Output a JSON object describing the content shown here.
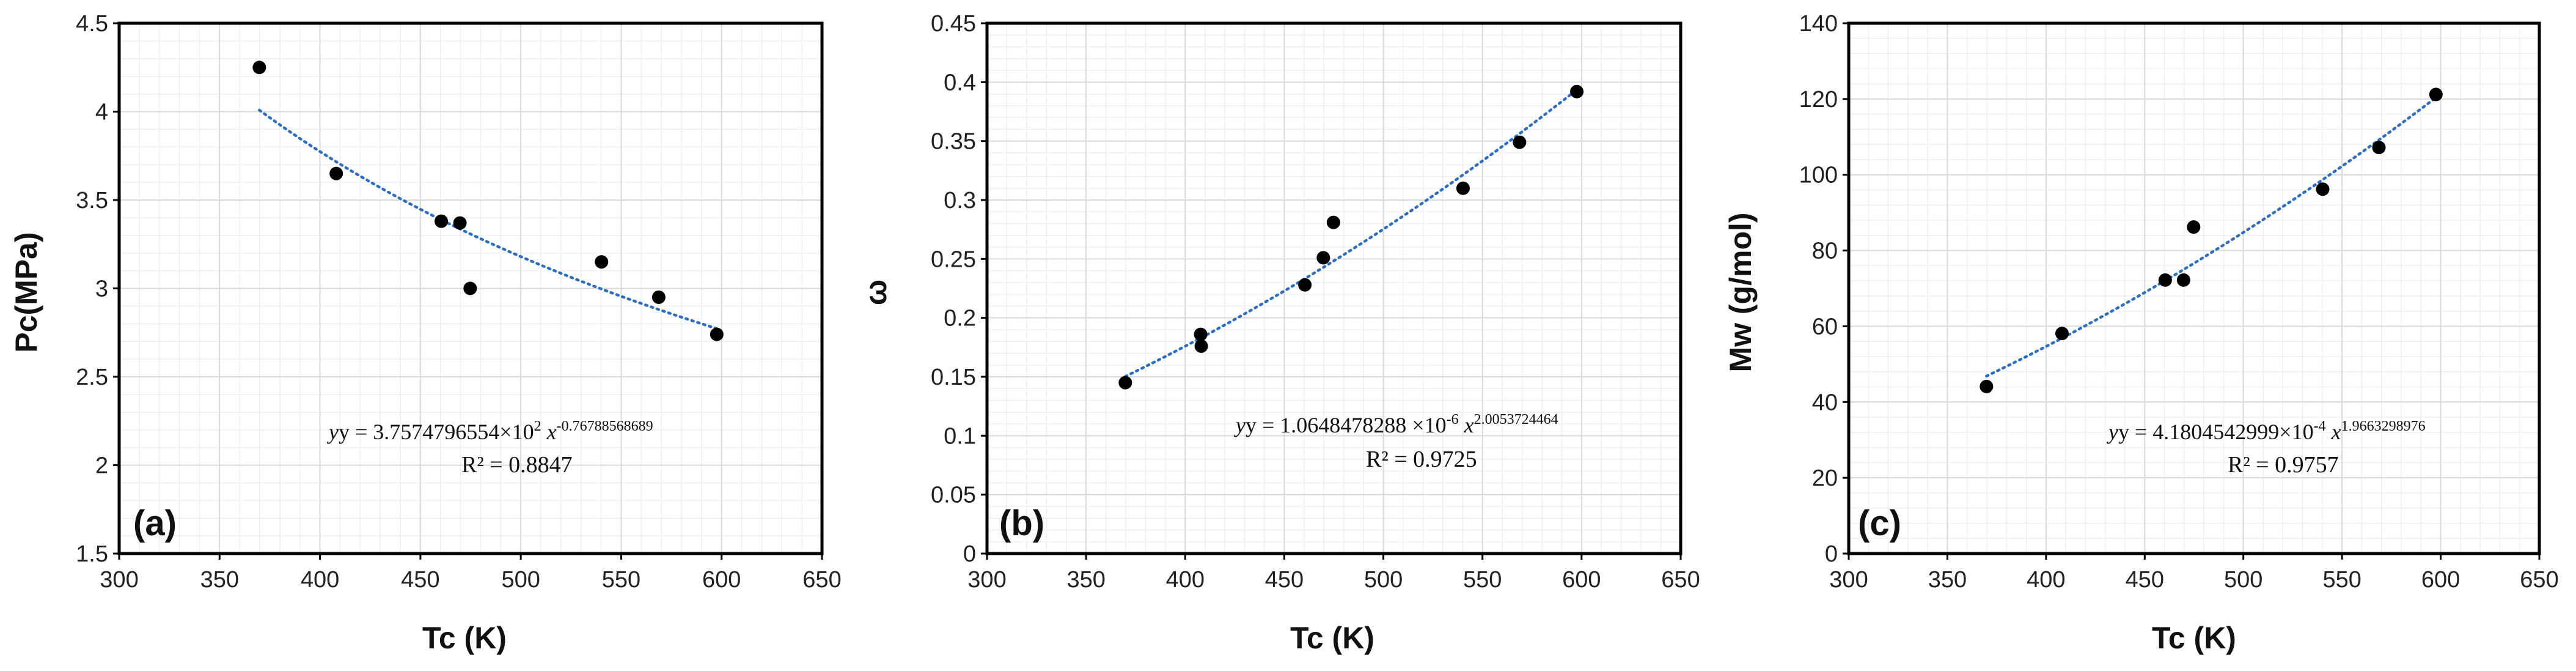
{
  "colors": {
    "point": "#000000",
    "trendline": "#2f6dbf",
    "grid_major": "#d9d9d9",
    "grid_minor": "#efefef",
    "axis": "#000000"
  },
  "chart_data": [
    {
      "type": "scatter",
      "panel_label": "(a)",
      "xlabel": "Tc (K)",
      "ylabel": "Pc(MPa)",
      "xlim": [
        300,
        650
      ],
      "ylim": [
        1.5,
        4.5
      ],
      "x_ticks": [
        "300",
        "350",
        "400",
        "450",
        "500",
        "550",
        "600",
        "650"
      ],
      "y_ticks": [
        "1.5",
        "2",
        "2.5",
        "3",
        "3.5",
        "4",
        "4.5"
      ],
      "y_minor_step": 0.1,
      "points": {
        "x": [
          369.8,
          408.1,
          460.4,
          469.7,
          474.8,
          540.2,
          568.7,
          597.6
        ],
        "y": [
          4.25,
          3.65,
          3.38,
          3.37,
          3.0,
          3.15,
          2.95,
          2.74
        ]
      },
      "trendline": {
        "kind": "power",
        "coefficient": 375.74796554,
        "exponent": -0.76788568689,
        "x_range": [
          369.8,
          597.6
        ],
        "equation_main": "y = 3.7574796554×10",
        "equation_coef_exp": "2",
        "equation_x": " x",
        "equation_exponent": "-0.76788568689",
        "r2_text": "R² = 0.8847"
      }
    },
    {
      "type": "scatter",
      "panel_label": "(b)",
      "xlabel": "Tc (K)",
      "ylabel": "ω",
      "xlim": [
        300,
        650
      ],
      "ylim": [
        0,
        0.45
      ],
      "x_ticks": [
        "300",
        "350",
        "400",
        "450",
        "500",
        "550",
        "600",
        "650"
      ],
      "y_ticks": [
        "0",
        "0.05",
        "0.1",
        "0.15",
        "0.2",
        "0.25",
        "0.3",
        "0.35",
        "0.4",
        "0.45"
      ],
      "y_minor_step": 0.01,
      "points": {
        "x": [
          369.8,
          407.8,
          408.1,
          460.4,
          469.7,
          474.8,
          540.2,
          568.7,
          597.6
        ],
        "y": [
          0.145,
          0.186,
          0.176,
          0.228,
          0.251,
          0.281,
          0.31,
          0.349,
          0.392
        ]
      },
      "trendline": {
        "kind": "power",
        "coefficient": 1.0648478288e-06,
        "exponent": 2.0053724464,
        "x_range": [
          369.8,
          597.6
        ],
        "equation_main": "y = 1.0648478288 ×10",
        "equation_coef_exp": "-6",
        "equation_x": " x",
        "equation_exponent": "2.0053724464",
        "r2_text": "R² = 0.9725"
      }
    },
    {
      "type": "scatter",
      "panel_label": "(c)",
      "xlabel": "Tc (K)",
      "ylabel": "Mw (g/mol)",
      "xlim": [
        300,
        650
      ],
      "ylim": [
        0,
        140
      ],
      "x_ticks": [
        "300",
        "350",
        "400",
        "450",
        "500",
        "550",
        "600",
        "650"
      ],
      "y_ticks": [
        "0",
        "20",
        "40",
        "60",
        "80",
        "100",
        "120",
        "140"
      ],
      "y_minor_step": 4,
      "points": {
        "x": [
          369.8,
          408.1,
          460.4,
          469.7,
          474.8,
          540.2,
          568.7,
          597.6
        ],
        "y": [
          44.1,
          58.1,
          72.2,
          72.2,
          86.2,
          96.2,
          107.2,
          121.2
        ]
      },
      "trendline": {
        "kind": "power",
        "coefficient": 0.00041804542999,
        "exponent": 1.9663298976,
        "x_range": [
          369.8,
          597.6
        ],
        "equation_main": "y = 4.1804542999×10",
        "equation_coef_exp": "-4",
        "equation_x": " x",
        "equation_exponent": "1.9663298976",
        "r2_text": "R² = 0.9757"
      }
    }
  ]
}
